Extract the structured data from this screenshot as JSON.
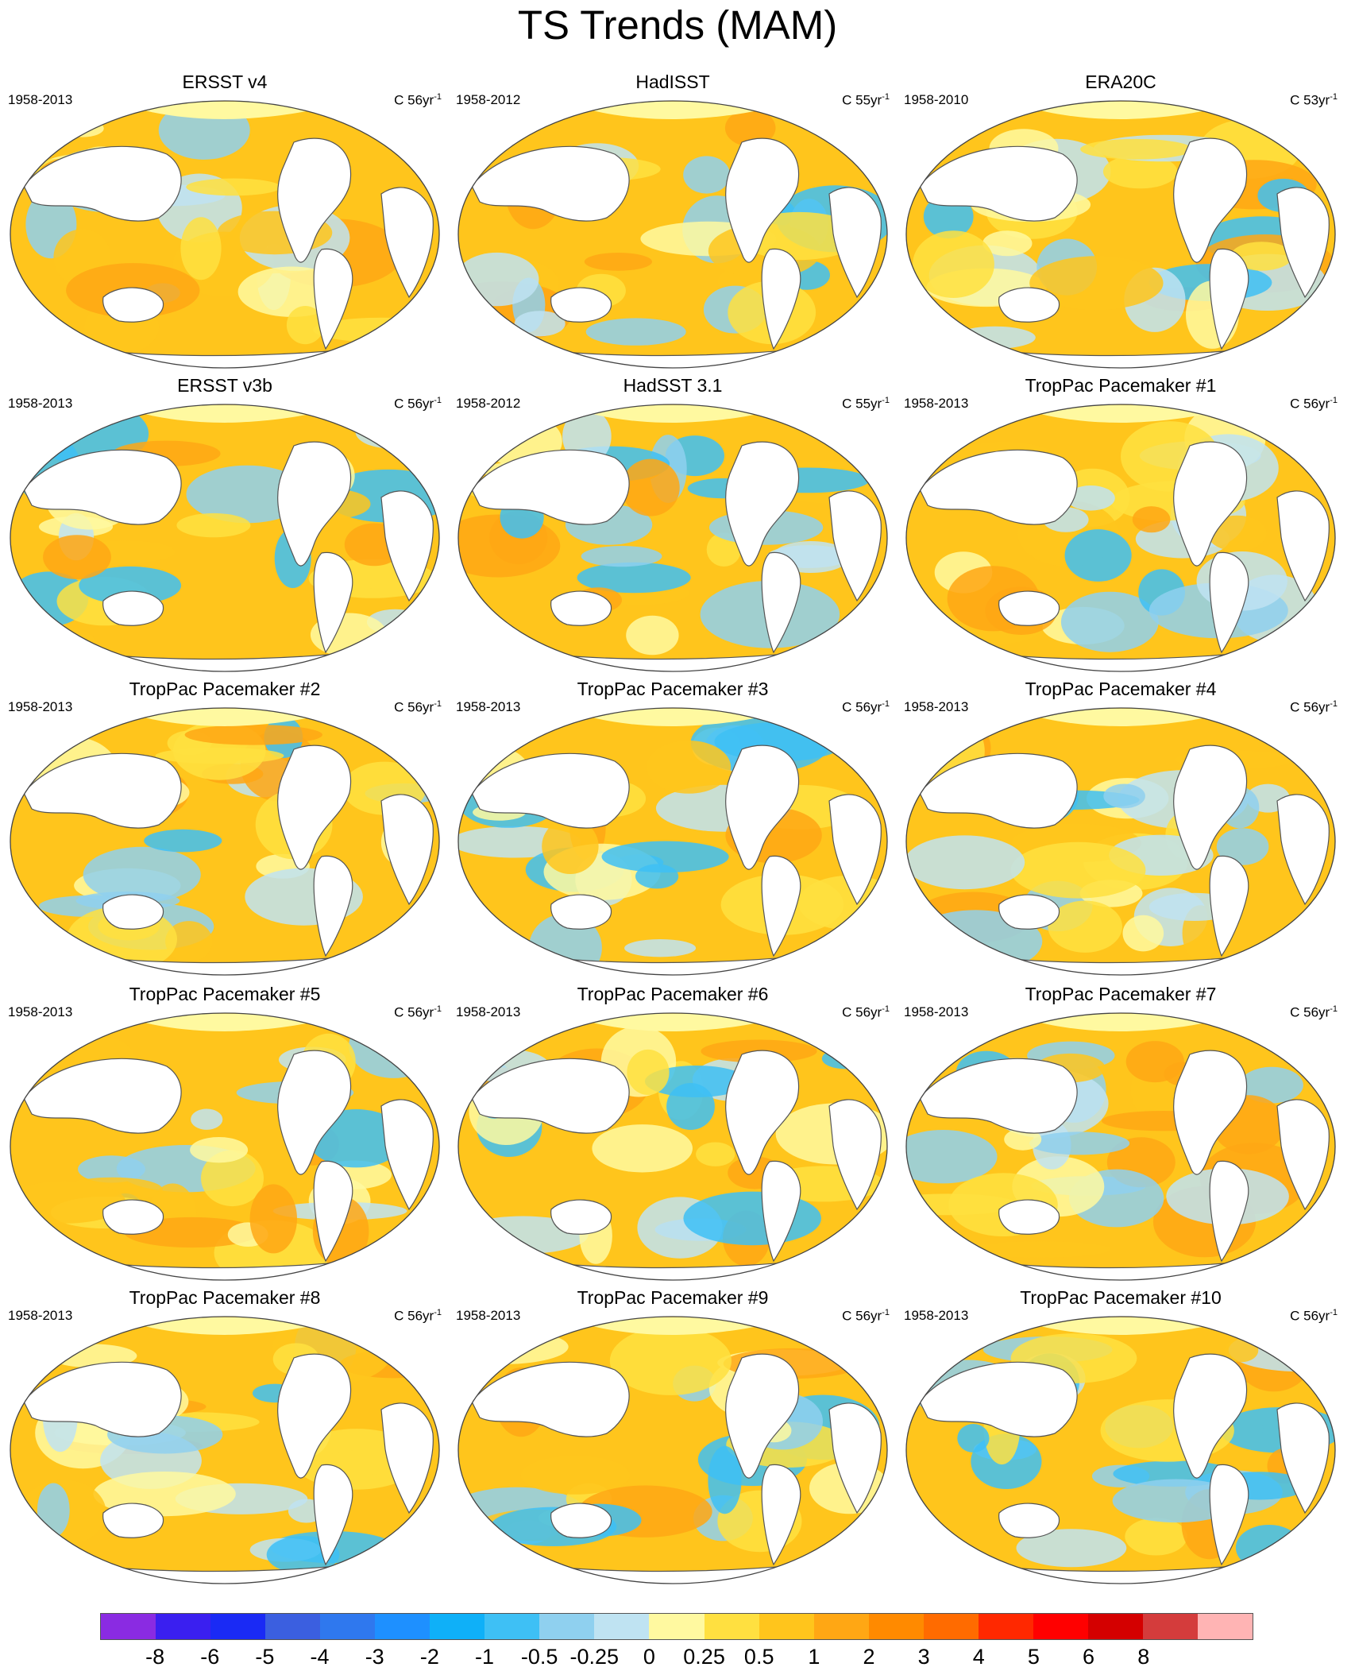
{
  "title": "TS Trends (MAM)",
  "panels": [
    {
      "title": "ERSST v4",
      "period": "1958-2013",
      "units": "C 56yr",
      "units_exp": "-1"
    },
    {
      "title": "HadISST",
      "period": "1958-2012",
      "units": "C 55yr",
      "units_exp": "-1"
    },
    {
      "title": "ERA20C",
      "period": "1958-2010",
      "units": "C 53yr",
      "units_exp": "-1"
    },
    {
      "title": "ERSST v3b",
      "period": "1958-2013",
      "units": "C 56yr",
      "units_exp": "-1"
    },
    {
      "title": "HadSST 3.1",
      "period": "1958-2012",
      "units": "C 55yr",
      "units_exp": "-1"
    },
    {
      "title": "TropPac Pacemaker #1",
      "period": "1958-2013",
      "units": "C 56yr",
      "units_exp": "-1"
    },
    {
      "title": "TropPac Pacemaker #2",
      "period": "1958-2013",
      "units": "C 56yr",
      "units_exp": "-1"
    },
    {
      "title": "TropPac Pacemaker #3",
      "period": "1958-2013",
      "units": "C 56yr",
      "units_exp": "-1"
    },
    {
      "title": "TropPac Pacemaker #4",
      "period": "1958-2013",
      "units": "C 56yr",
      "units_exp": "-1"
    },
    {
      "title": "TropPac Pacemaker #5",
      "period": "1958-2013",
      "units": "C 56yr",
      "units_exp": "-1"
    },
    {
      "title": "TropPac Pacemaker #6",
      "period": "1958-2013",
      "units": "C 56yr",
      "units_exp": "-1"
    },
    {
      "title": "TropPac Pacemaker #7",
      "period": "1958-2013",
      "units": "C 56yr",
      "units_exp": "-1"
    },
    {
      "title": "TropPac Pacemaker #8",
      "period": "1958-2013",
      "units": "C 56yr",
      "units_exp": "-1"
    },
    {
      "title": "TropPac Pacemaker #9",
      "period": "1958-2013",
      "units": "C 56yr",
      "units_exp": "-1"
    },
    {
      "title": "TropPac Pacemaker #10",
      "period": "1958-2013",
      "units": "C 56yr",
      "units_exp": "-1"
    }
  ],
  "colorbar": {
    "colors": [
      "#8a2be2",
      "#3a1ff0",
      "#1a2af5",
      "#3b5fe0",
      "#2f78ee",
      "#1e90ff",
      "#0fb0f8",
      "#3ec0f5",
      "#8fd0ef",
      "#bfe3f2",
      "#fff9a0",
      "#ffe040",
      "#ffc51c",
      "#ffa714",
      "#ff8a00",
      "#ff6b00",
      "#ff2800",
      "#ff0000",
      "#d40000",
      "#d43c3c",
      "#ffb4b4"
    ],
    "labels": [
      "-8",
      "-6",
      "-5",
      "-4",
      "-3",
      "-2",
      "-1",
      "-0.5",
      "-0.25",
      "0",
      "0.25",
      "0.5",
      "1",
      "2",
      "3",
      "4",
      "5",
      "6",
      "8"
    ]
  }
}
